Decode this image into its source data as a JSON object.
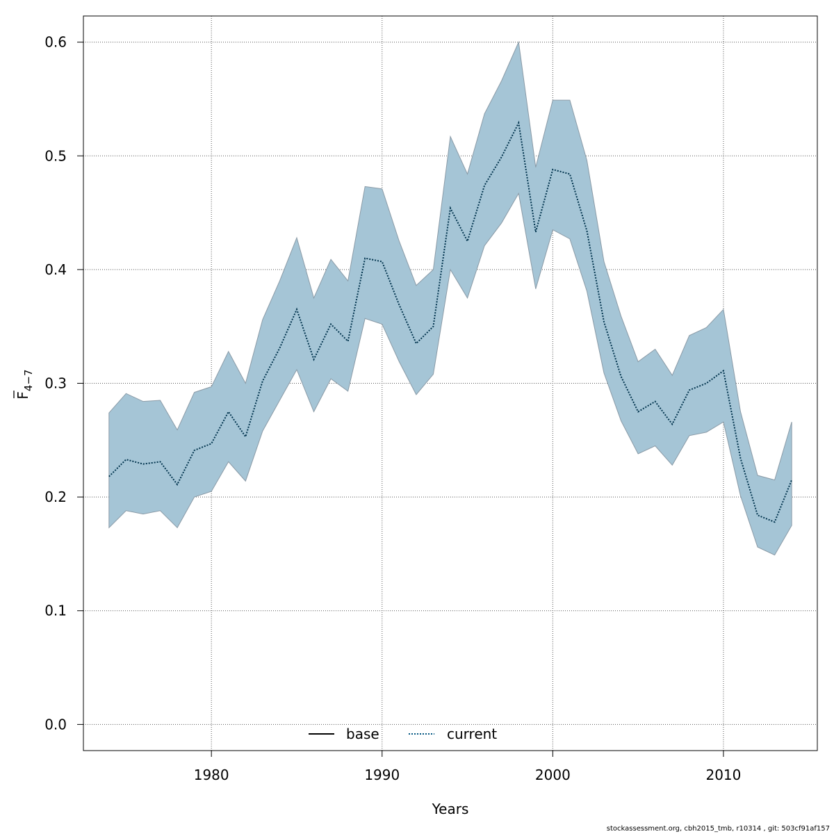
{
  "chart_data": {
    "type": "area",
    "xlabel": "Years",
    "ylabel": {
      "main": "F",
      "sub": "4−7",
      "overline": true
    },
    "xlim": [
      1972.5,
      2015.5
    ],
    "ylim": [
      -0.023,
      0.623
    ],
    "xticks": [
      1980,
      1990,
      2000,
      2010
    ],
    "yticks": [
      "0.0",
      "0.1",
      "0.2",
      "0.3",
      "0.4",
      "0.5",
      "0.6"
    ],
    "grid": true,
    "legend_position": "bottom-center",
    "x": [
      1974,
      1975,
      1976,
      1977,
      1978,
      1979,
      1980,
      1981,
      1982,
      1983,
      1984,
      1985,
      1986,
      1987,
      1988,
      1989,
      1990,
      1991,
      1992,
      1993,
      1994,
      1995,
      1996,
      1997,
      1998,
      1999,
      2000,
      2001,
      2002,
      2003,
      2004,
      2005,
      2006,
      2007,
      2008,
      2009,
      2010,
      2011,
      2012,
      2013,
      2014
    ],
    "series": [
      {
        "name": "base",
        "style": "solid",
        "color": "#000000",
        "values": [
          0.218,
          0.233,
          0.229,
          0.231,
          0.211,
          0.241,
          0.247,
          0.275,
          0.253,
          0.302,
          0.331,
          0.365,
          0.321,
          0.352,
          0.337,
          0.41,
          0.407,
          0.369,
          0.335,
          0.35,
          0.454,
          0.425,
          0.474,
          0.499,
          0.529,
          0.433,
          0.488,
          0.484,
          0.434,
          0.354,
          0.306,
          0.275,
          0.284,
          0.264,
          0.294,
          0.3,
          0.311,
          0.234,
          0.184,
          0.178,
          0.215
        ]
      },
      {
        "name": "current",
        "style": "dotted",
        "color": "#00334d",
        "values": [
          0.218,
          0.233,
          0.229,
          0.231,
          0.211,
          0.241,
          0.247,
          0.275,
          0.253,
          0.302,
          0.331,
          0.365,
          0.321,
          0.352,
          0.337,
          0.41,
          0.407,
          0.369,
          0.335,
          0.35,
          0.454,
          0.425,
          0.474,
          0.499,
          0.529,
          0.433,
          0.488,
          0.484,
          0.434,
          0.354,
          0.306,
          0.275,
          0.284,
          0.264,
          0.294,
          0.3,
          0.311,
          0.234,
          0.184,
          0.178,
          0.215
        ]
      }
    ],
    "band": {
      "color": "#a5c5d6",
      "lower": [
        0.173,
        0.188,
        0.185,
        0.188,
        0.173,
        0.2,
        0.205,
        0.231,
        0.214,
        0.258,
        0.285,
        0.312,
        0.275,
        0.304,
        0.293,
        0.357,
        0.352,
        0.319,
        0.29,
        0.308,
        0.4,
        0.375,
        0.421,
        0.441,
        0.467,
        0.383,
        0.435,
        0.427,
        0.381,
        0.309,
        0.267,
        0.238,
        0.245,
        0.228,
        0.254,
        0.257,
        0.266,
        0.201,
        0.156,
        0.149,
        0.175
      ],
      "upper": [
        0.274,
        0.291,
        0.284,
        0.285,
        0.259,
        0.292,
        0.297,
        0.328,
        0.3,
        0.356,
        0.39,
        0.428,
        0.375,
        0.409,
        0.39,
        0.473,
        0.471,
        0.425,
        0.386,
        0.4,
        0.517,
        0.484,
        0.537,
        0.566,
        0.6,
        0.49,
        0.549,
        0.549,
        0.496,
        0.407,
        0.359,
        0.319,
        0.33,
        0.307,
        0.342,
        0.349,
        0.365,
        0.275,
        0.219,
        0.215,
        0.266
      ]
    }
  },
  "footer": "stockassessment.org, cbh2015_tmb, r10314 , git: 503cf91af157"
}
